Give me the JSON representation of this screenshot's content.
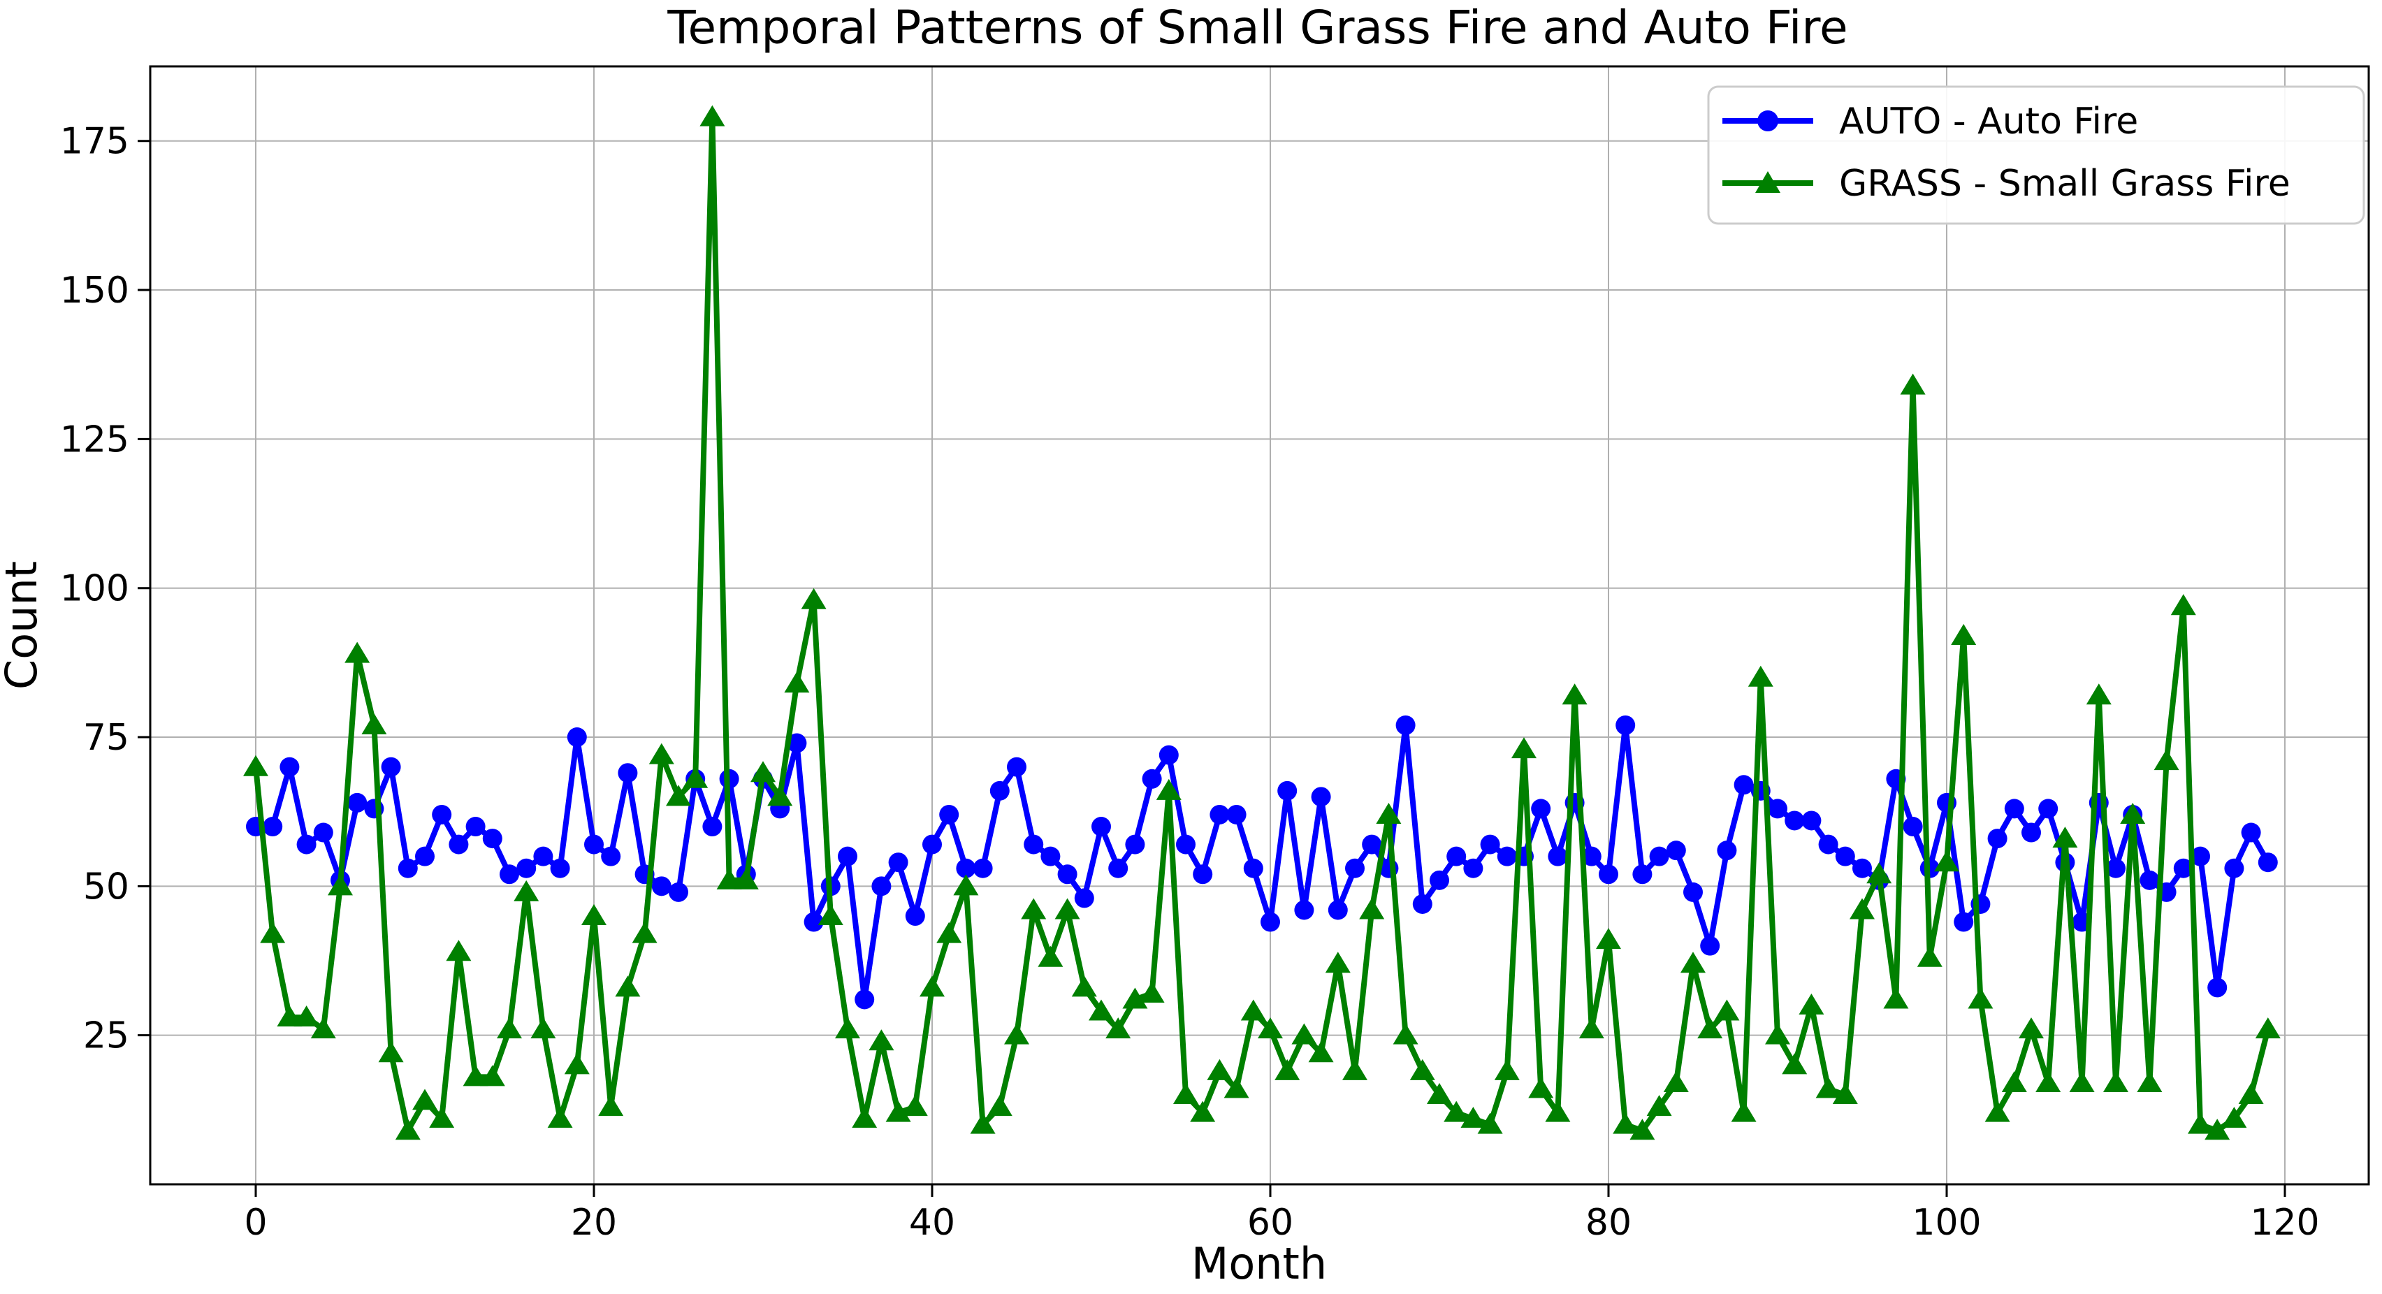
{
  "title": "Temporal Patterns of Small Grass Fire and Auto Fire",
  "axes": {
    "xlabel": "Month",
    "ylabel": "Count"
  },
  "legend": {
    "items": [
      {
        "label": "AUTO - Auto Fire"
      },
      {
        "label": "GRASS - Small Grass Fire"
      }
    ]
  },
  "colors": {
    "auto_series": "#0000ff",
    "grass_series": "#008000",
    "grid": "#b0b0b0",
    "spine": "#000000"
  },
  "chart_data": {
    "type": "line",
    "title": "Temporal Patterns of Small Grass Fire and Auto Fire",
    "xlabel": "Month",
    "ylabel": "Count",
    "grid": true,
    "legend_position": "upper right",
    "x_ticks": [
      0,
      20,
      40,
      60,
      80,
      100,
      120
    ],
    "y_ticks": [
      25,
      50,
      75,
      100,
      125,
      150,
      175
    ],
    "xlim": [
      -6,
      125
    ],
    "ylim": [
      0,
      187.5
    ],
    "x": [
      0,
      1,
      2,
      3,
      4,
      5,
      6,
      7,
      8,
      9,
      10,
      11,
      12,
      13,
      14,
      15,
      16,
      17,
      18,
      19,
      20,
      21,
      22,
      23,
      24,
      25,
      26,
      27,
      28,
      29,
      30,
      31,
      32,
      33,
      34,
      35,
      36,
      37,
      38,
      39,
      40,
      41,
      42,
      43,
      44,
      45,
      46,
      47,
      48,
      49,
      50,
      51,
      52,
      53,
      54,
      55,
      56,
      57,
      58,
      59,
      60,
      61,
      62,
      63,
      64,
      65,
      66,
      67,
      68,
      69,
      70,
      71,
      72,
      73,
      74,
      75,
      76,
      77,
      78,
      79,
      80,
      81,
      82,
      83,
      84,
      85,
      86,
      87,
      88,
      89,
      90,
      91,
      92,
      93,
      94,
      95,
      96,
      97,
      98,
      99,
      100,
      101,
      102,
      103,
      104,
      105,
      106,
      107,
      108,
      109,
      110,
      111,
      112,
      113,
      114,
      115,
      116,
      117,
      118,
      119
    ],
    "series": [
      {
        "name": "AUTO - Auto Fire",
        "color": "#0000ff",
        "marker": "circle",
        "values": [
          60,
          60,
          70,
          57,
          59,
          51,
          64,
          63,
          70,
          53,
          55,
          62,
          57,
          60,
          58,
          52,
          53,
          55,
          53,
          75,
          57,
          55,
          69,
          52,
          50,
          49,
          68,
          60,
          68,
          52,
          68,
          63,
          74,
          44,
          50,
          55,
          31,
          50,
          54,
          45,
          57,
          62,
          53,
          53,
          66,
          70,
          57,
          55,
          52,
          48,
          60,
          53,
          57,
          68,
          72,
          57,
          52,
          62,
          62,
          53,
          44,
          66,
          46,
          65,
          46,
          53,
          57,
          53,
          77,
          47,
          51,
          55,
          53,
          57,
          55,
          55,
          63,
          55,
          64,
          55,
          52,
          77,
          52,
          55,
          56,
          49,
          40,
          56,
          67,
          66,
          63,
          61,
          61,
          57,
          55,
          53,
          51,
          68,
          60,
          53,
          64,
          44,
          47,
          58,
          63,
          59,
          63,
          54,
          44,
          64,
          53,
          62,
          51,
          49,
          53,
          55,
          33,
          53,
          59,
          54
        ]
      },
      {
        "name": "GRASS - Small Grass Fire",
        "color": "#008000",
        "marker": "triangle",
        "values": [
          70,
          42,
          28,
          28,
          26,
          50,
          89,
          77,
          22,
          9,
          14,
          11,
          39,
          18,
          18,
          26,
          49,
          26,
          11,
          20,
          45,
          13,
          33,
          42,
          72,
          65,
          68,
          179,
          51,
          51,
          69,
          65,
          84,
          98,
          45,
          26,
          11,
          24,
          12,
          13,
          33,
          42,
          50,
          10,
          13,
          25,
          46,
          38,
          46,
          33,
          29,
          26,
          31,
          32,
          66,
          15,
          12,
          19,
          16,
          29,
          26,
          19,
          25,
          22,
          37,
          19,
          46,
          62,
          25,
          19,
          15,
          12,
          11,
          10,
          19,
          73,
          16,
          12,
          82,
          26,
          41,
          10,
          9,
          13,
          17,
          37,
          26,
          29,
          12,
          85,
          25,
          20,
          30,
          16,
          15,
          46,
          52,
          31,
          134,
          38,
          54,
          92,
          31,
          12,
          17,
          26,
          17,
          58,
          17,
          82,
          17,
          62,
          17,
          71,
          97,
          10,
          9,
          11,
          15,
          26
        ]
      }
    ]
  }
}
